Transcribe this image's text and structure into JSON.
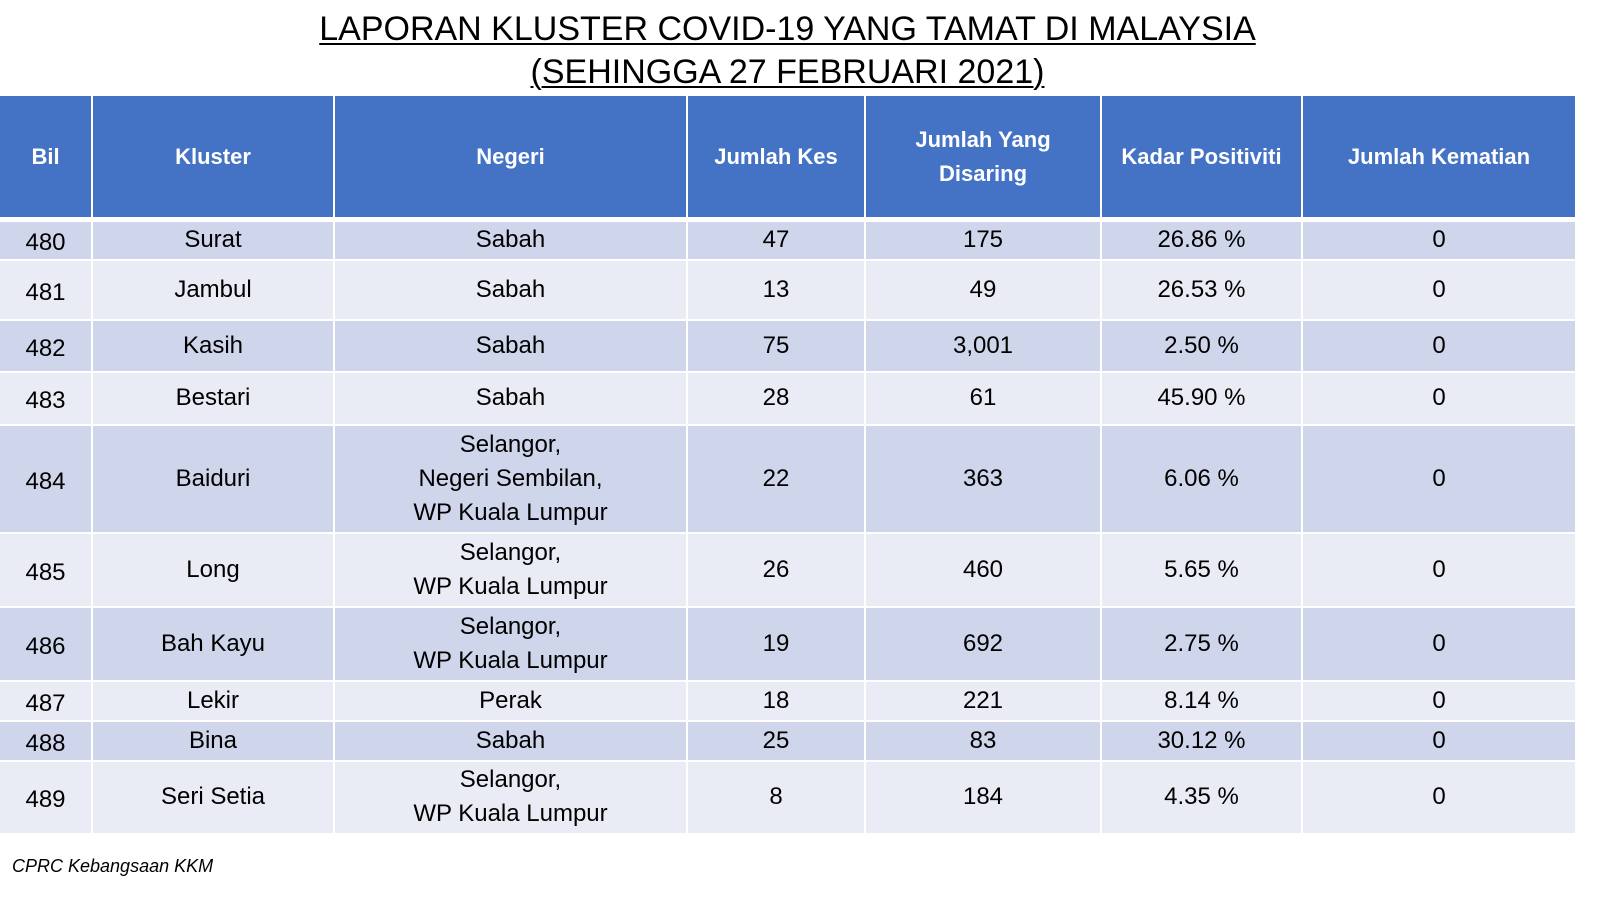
{
  "title": {
    "line1": "LAPORAN KLUSTER COVID-19 YANG TAMAT DI MALAYSIA",
    "line2": "(SEHINGGA 27 FEBRUARI 2021)"
  },
  "table": {
    "headers": {
      "bil": "Bil",
      "kluster": "Kluster",
      "negeri": "Negeri",
      "jumlah_kes": "Jumlah Kes",
      "jumlah_disaring_1": "Jumlah Yang",
      "jumlah_disaring_2": "Disaring",
      "kadar_positiviti": "Kadar Positiviti",
      "jumlah_kematian": "Jumlah Kematian"
    },
    "rows": [
      {
        "bil": "480",
        "kluster": "Surat",
        "negeri": [
          "Sabah"
        ],
        "kes": "47",
        "disaring": "175",
        "positiviti": "26.86 %",
        "kematian": "0"
      },
      {
        "bil": "481",
        "kluster": "Jambul",
        "negeri": [
          "Sabah"
        ],
        "kes": "13",
        "disaring": "49",
        "positiviti": "26.53 %",
        "kematian": "0"
      },
      {
        "bil": "482",
        "kluster": "Kasih",
        "negeri": [
          "Sabah"
        ],
        "kes": "75",
        "disaring": "3,001",
        "positiviti": "2.50 %",
        "kematian": "0"
      },
      {
        "bil": "483",
        "kluster": "Bestari",
        "negeri": [
          "Sabah"
        ],
        "kes": "28",
        "disaring": "61",
        "positiviti": "45.90 %",
        "kematian": "0"
      },
      {
        "bil": "484",
        "kluster": "Baiduri",
        "negeri": [
          "Selangor,",
          "Negeri Sembilan,",
          "WP Kuala Lumpur"
        ],
        "kes": "22",
        "disaring": "363",
        "positiviti": "6.06 %",
        "kematian": "0"
      },
      {
        "bil": "485",
        "kluster": "Long",
        "negeri": [
          "Selangor,",
          "WP Kuala Lumpur"
        ],
        "kes": "26",
        "disaring": "460",
        "positiviti": "5.65 %",
        "kematian": "0"
      },
      {
        "bil": "486",
        "kluster": "Bah Kayu",
        "negeri": [
          "Selangor,",
          "WP Kuala Lumpur"
        ],
        "kes": "19",
        "disaring": "692",
        "positiviti": "2.75 %",
        "kematian": "0"
      },
      {
        "bil": "487",
        "kluster": "Lekir",
        "negeri": [
          "Perak"
        ],
        "kes": "18",
        "disaring": "221",
        "positiviti": "8.14 %",
        "kematian": "0"
      },
      {
        "bil": "488",
        "kluster": "Bina",
        "negeri": [
          "Sabah"
        ],
        "kes": "25",
        "disaring": "83",
        "positiviti": "30.12 %",
        "kematian": "0"
      },
      {
        "bil": "489",
        "kluster": "Seri Setia",
        "negeri": [
          "Selangor,",
          "WP Kuala Lumpur"
        ],
        "kes": "8",
        "disaring": "184",
        "positiviti": "4.35 %",
        "kematian": "0"
      }
    ]
  },
  "footer": "CPRC Kebangsaan KKM",
  "colors": {
    "header_bg": "#4472c4",
    "row_dark": "#cfd5ea",
    "row_light": "#e9ebf5"
  }
}
